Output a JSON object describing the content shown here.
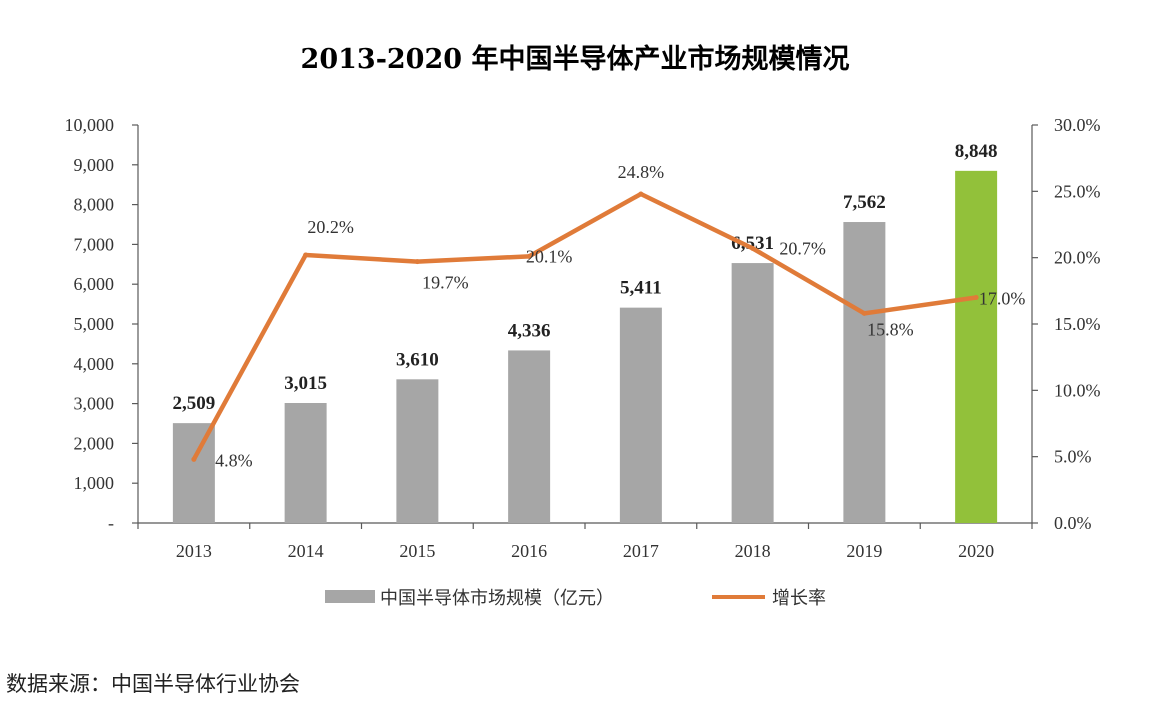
{
  "chart_data": {
    "type": "bar",
    "title": "2013-2020 年中国半导体产业市场规模情况",
    "categories": [
      "2013",
      "2014",
      "2015",
      "2016",
      "2017",
      "2018",
      "2019",
      "2020"
    ],
    "series": [
      {
        "name": "中国半导体市场规模（亿元）",
        "type": "bar",
        "axis": "left",
        "values": [
          2509,
          3015,
          3610,
          4336,
          5411,
          6531,
          7562,
          8848
        ],
        "labels": [
          "2,509",
          "3,015",
          "3,610",
          "4,336",
          "5,411",
          "6,531",
          "7,562",
          "8,848"
        ],
        "color": "#a6a6a6",
        "highlight_color": "#92c13a",
        "highlight_index": 7
      },
      {
        "name": "增长率",
        "type": "line",
        "axis": "right",
        "values": [
          4.8,
          20.2,
          19.7,
          20.1,
          24.8,
          20.7,
          15.8,
          17.0
        ],
        "labels": [
          "4.8%",
          "20.2%",
          "19.7%",
          "20.1%",
          "24.8%",
          "20.7%",
          "15.8%",
          "17.0%"
        ],
        "color": "#e07b39"
      }
    ],
    "y_left": {
      "range": [
        0,
        10000
      ],
      "ticks": [
        "-",
        "1,000",
        "2,000",
        "3,000",
        "4,000",
        "5,000",
        "6,000",
        "7,000",
        "8,000",
        "9,000",
        "10,000"
      ]
    },
    "y_right": {
      "range": [
        0,
        30
      ],
      "ticks": [
        "0.0%",
        "5.0%",
        "10.0%",
        "15.0%",
        "20.0%",
        "25.0%",
        "30.0%"
      ]
    },
    "grid": false,
    "legend_position": "bottom"
  },
  "source_note": "数据来源：中国半导体行业协会"
}
